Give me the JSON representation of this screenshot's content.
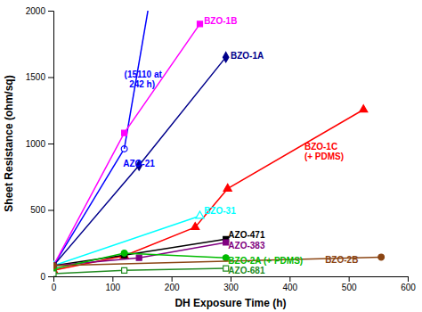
{
  "chart_data": {
    "type": "line",
    "xlabel": "DH Exposure Time (h)",
    "ylabel": "Sheet Resistance (ohm/sq)",
    "xlim": [
      0,
      600
    ],
    "ylim": [
      0,
      2000
    ],
    "xticks": [
      0,
      100,
      200,
      300,
      400,
      500,
      600
    ],
    "yticks": [
      0,
      500,
      1000,
      1500,
      2000
    ],
    "series": [
      {
        "color": "blue",
        "marker": "open-circle",
        "x": [
          0,
          120
        ],
        "values": [
          80,
          960
        ]
      },
      {
        "color": "blue",
        "marker": "none",
        "x": [
          120,
          160
        ],
        "values": [
          960,
          2000
        ]
      },
      {
        "color": "#ff00ff",
        "marker": "square",
        "x": [
          0,
          120,
          248
        ],
        "values": [
          80,
          1080,
          1900
        ]
      },
      {
        "color": "#00008B",
        "marker": "diamond",
        "x": [
          0,
          145,
          292
        ],
        "values": [
          80,
          835,
          1650
        ]
      },
      {
        "color": "red",
        "marker": "triangle",
        "x": [
          0,
          120,
          240,
          295,
          525
        ],
        "values": [
          45,
          155,
          370,
          660,
          1255
        ]
      },
      {
        "color": "cyan",
        "marker": "open-triangle",
        "x": [
          0,
          248
        ],
        "values": [
          80,
          455
        ]
      },
      {
        "color": "black",
        "marker": "square",
        "x": [
          0,
          120,
          292
        ],
        "values": [
          80,
          160,
          280
        ]
      },
      {
        "color": "#800080",
        "marker": "square",
        "x": [
          0,
          145,
          292
        ],
        "values": [
          80,
          140,
          255
        ]
      },
      {
        "color": "#00bb00",
        "marker": "circle",
        "x": [
          0,
          120,
          292
        ],
        "values": [
          55,
          175,
          140
        ]
      },
      {
        "color": "#8B4513",
        "marker": "circle",
        "x": [
          0,
          555
        ],
        "values": [
          80,
          145
        ]
      },
      {
        "color": "#228B22",
        "marker": "open-square",
        "x": [
          0,
          120,
          292
        ],
        "values": [
          20,
          45,
          60
        ]
      }
    ],
    "annotations": [
      {
        "text": "(15110 at\n  242 h)",
        "x": 120,
        "y": 1480,
        "color": "blue"
      },
      {
        "text": "AZO-21",
        "x": 118,
        "y": 850,
        "color": "blue"
      },
      {
        "text": "BZO-1B",
        "x": 255,
        "y": 1920,
        "color": "#ff00ff"
      },
      {
        "text": "BZO-1A",
        "x": 300,
        "y": 1660,
        "color": "#00008B"
      },
      {
        "text": "BZO-1C\n(+ PDMS)",
        "x": 425,
        "y": 940,
        "color": "red"
      },
      {
        "text": "BZO-31",
        "x": 255,
        "y": 490,
        "color": "cyan"
      },
      {
        "text": "AZO-471",
        "x": 296,
        "y": 292,
        "color": "black"
      },
      {
        "text": "AZO-383",
        "x": 296,
        "y": 248,
        "color": "#800080"
      },
      {
        "text": "BZO-2A (+ PDMS)",
        "x": 296,
        "y": 118,
        "color": "#00bb00"
      },
      {
        "text": "BZO-2B",
        "x": 460,
        "y": 123,
        "color": "#8B4513"
      },
      {
        "text": "AZO-681",
        "x": 296,
        "y": 42,
        "color": "#228B22"
      }
    ]
  }
}
